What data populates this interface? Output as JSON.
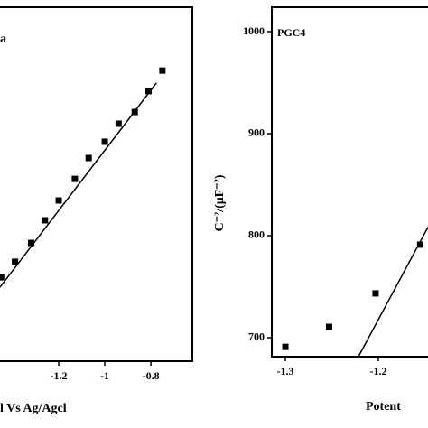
{
  "chart_data": [
    {
      "type": "scatter",
      "title": "a",
      "xlabel": "l Vs Ag/Agcl",
      "x": [
        -1.45,
        -1.39,
        -1.32,
        -1.26,
        -1.2,
        -1.13,
        -1.07,
        -1.0,
        -0.94,
        -0.87,
        -0.81,
        -0.75
      ],
      "series": [
        {
          "color": "#000000",
          "values": [
            23.7,
            28.1,
            33.4,
            39.8,
            45.4,
            51.5,
            57.4,
            62.0,
            67.1,
            70.4,
            76.3,
            82.1
          ]
        }
      ],
      "fit": {
        "x": [
          -1.455,
          -0.776
        ],
        "y": [
          20.9,
          78.6
        ]
      },
      "xlim": [
        -1.455,
        -0.62
      ],
      "ylim": [
        0,
        100
      ],
      "xticks": [
        -1.2,
        -1.0,
        -0.8
      ]
    },
    {
      "type": "scatter",
      "title": "PGC4",
      "xlabel": "Potent",
      "ylabel": "C⁻²/(μF⁻²)",
      "x": [
        -1.3,
        -1.253,
        -1.203,
        -1.155
      ],
      "series": [
        {
          "color": "#000000",
          "values": [
            691,
            710.6,
            743.4,
            791.2
          ]
        }
      ],
      "fit": {
        "x": [
          -1.2214,
          -1.1466
        ],
        "y": [
          681.4,
          808.3
        ]
      },
      "xlim": [
        -1.3146,
        -1.1466
      ],
      "ylim": [
        681.4,
        1023.9
      ],
      "xticks": [
        -1.3,
        -1.2
      ],
      "yticks": [
        700,
        800,
        900,
        1000
      ]
    }
  ]
}
